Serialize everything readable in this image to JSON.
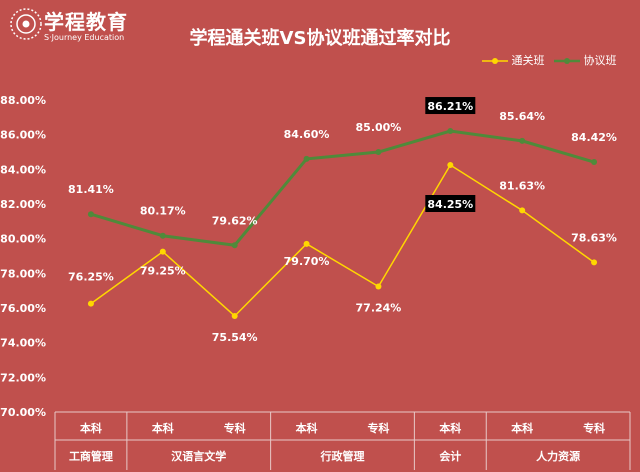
{
  "brand": {
    "name": "学程教育",
    "subtitle": "S·Journey Education"
  },
  "chart_data": {
    "type": "line",
    "title": "学程通关班VS协议班通过率对比",
    "categories": [
      "本科",
      "本科",
      "专科",
      "本科",
      "专科",
      "本科",
      "本科",
      "专科"
    ],
    "groups": [
      {
        "label": "工商管理",
        "count": 1
      },
      {
        "label": "汉语言文学",
        "count": 2
      },
      {
        "label": "行政管理",
        "count": 2
      },
      {
        "label": "会计",
        "count": 1
      },
      {
        "label": "人力资源",
        "count": 2
      }
    ],
    "series": [
      {
        "name": "通关班",
        "color": "#ffd700",
        "values": [
          76.25,
          79.25,
          75.54,
          79.7,
          77.24,
          84.25,
          81.63,
          78.63
        ],
        "labels": [
          "76.25%",
          "79.25%",
          "75.54%",
          "79.70%",
          "77.24%",
          "84.25%",
          "81.63%",
          "78.63%"
        ]
      },
      {
        "name": "协议班",
        "color": "#4f8a3a",
        "values": [
          81.41,
          80.17,
          79.62,
          84.6,
          85.0,
          86.21,
          85.64,
          84.42
        ],
        "labels": [
          "81.41%",
          "80.17%",
          "79.62%",
          "84.60%",
          "85.00%",
          "86.21%",
          "85.64%",
          "84.42%"
        ]
      }
    ],
    "y_ticks": [
      "70.00%",
      "72.00%",
      "74.00%",
      "76.00%",
      "78.00%",
      "80.00%",
      "82.00%",
      "84.00%",
      "86.00%",
      "88.00%"
    ],
    "ylim": [
      70,
      88
    ],
    "highlighted_labels": [
      "84.25%",
      "86.21%"
    ],
    "legend_position": "top-right"
  }
}
